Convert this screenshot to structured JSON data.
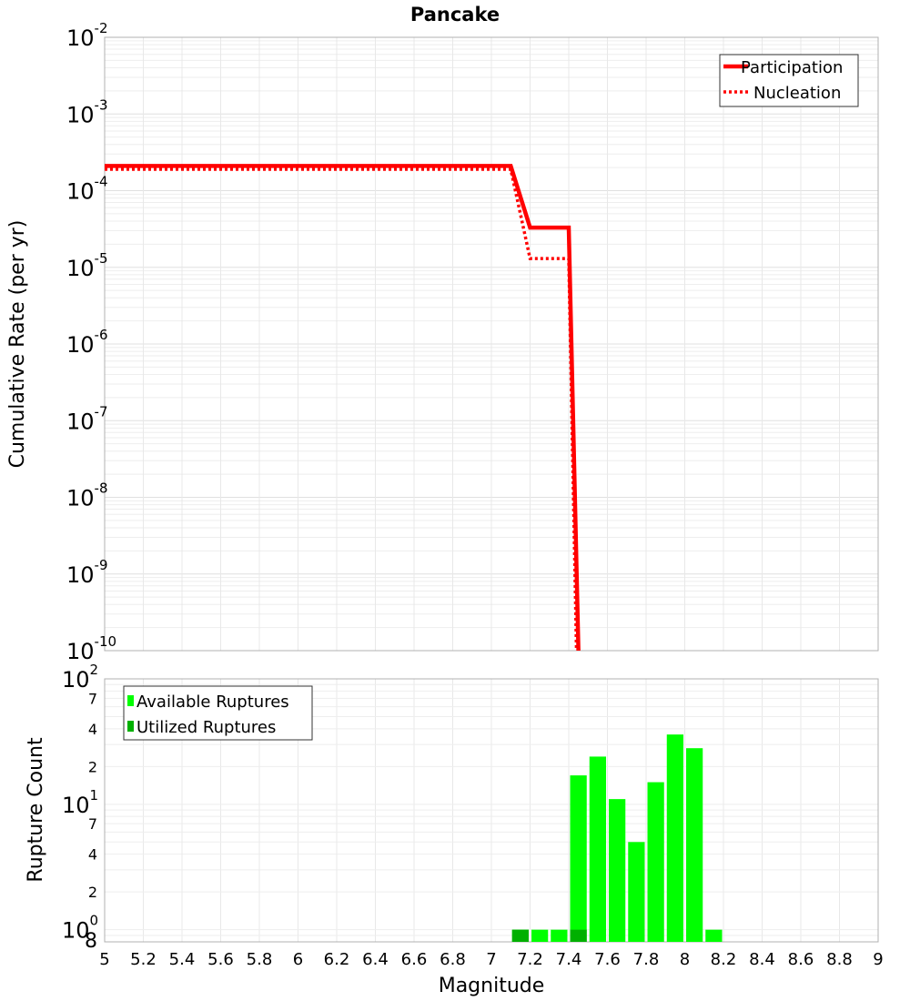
{
  "chart_data": [
    {
      "type": "line",
      "title": "Pancake",
      "xlabel": "Magnitude",
      "ylabel": "Cumulative Rate (per yr)",
      "xlim": [
        5,
        9
      ],
      "ylim": [
        1e-10,
        0.01
      ],
      "yscale": "log",
      "grid": true,
      "legend_position": "top-right",
      "y_tick_exponents": [
        "-2",
        "-3",
        "-4",
        "-5",
        "-6",
        "-7",
        "-8",
        "-9",
        "-10"
      ],
      "series": [
        {
          "name": "Participation",
          "style": "solid",
          "color": "#ff0000",
          "x": [
            5,
            7.1,
            7.2,
            7.4,
            7.45
          ],
          "y": [
            0.00021,
            0.00021,
            3.3e-05,
            3.3e-05,
            1e-10
          ]
        },
        {
          "name": "Nucleation",
          "style": "dotted",
          "color": "#ff0000",
          "x": [
            5,
            7.1,
            7.2,
            7.4,
            7.44
          ],
          "y": [
            0.00019,
            0.00019,
            1.3e-05,
            1.3e-05,
            1e-10
          ]
        }
      ]
    },
    {
      "type": "bar",
      "xlabel": "Magnitude",
      "ylabel": "Rupture Count",
      "xlim": [
        5,
        9
      ],
      "ylim": [
        0.8,
        100
      ],
      "yscale": "log",
      "grid": true,
      "legend_position": "top-left",
      "x_tick_labels": [
        "5",
        "5.2",
        "5.4",
        "5.6",
        "5.8",
        "6",
        "6.2",
        "6.4",
        "6.6",
        "6.8",
        "7",
        "7.2",
        "7.4",
        "7.6",
        "7.8",
        "8",
        "8.2",
        "8.4",
        "8.6",
        "8.8",
        "9"
      ],
      "y_major_labels": [
        {
          "base": "10",
          "exp": "2",
          "value": 100
        },
        {
          "base": "10",
          "exp": "1",
          "value": 10
        },
        {
          "base": "10",
          "exp": "0",
          "value": 1
        }
      ],
      "y_minor_labels": [
        {
          "label": "7",
          "value": 70
        },
        {
          "label": "4",
          "value": 40
        },
        {
          "label": "2",
          "value": 20
        },
        {
          "label": "7",
          "value": 7
        },
        {
          "label": "4",
          "value": 4
        },
        {
          "label": "2",
          "value": 2
        },
        {
          "label": "8",
          "value": 0.8
        }
      ],
      "bin_width": 0.1,
      "bin_starts": [
        7.1,
        7.2,
        7.3,
        7.4,
        7.5,
        7.6,
        7.7,
        7.8,
        7.9,
        8.0,
        8.1
      ],
      "series": [
        {
          "name": "Available Ruptures",
          "color": "#00ff00",
          "values": [
            1,
            1,
            1,
            17,
            24,
            11,
            5,
            15,
            36,
            28,
            1
          ]
        },
        {
          "name": "Utilized Ruptures",
          "color": "#00b000",
          "values": [
            1,
            0,
            0,
            1,
            0,
            0,
            0,
            0,
            0,
            0,
            0
          ]
        }
      ]
    }
  ]
}
